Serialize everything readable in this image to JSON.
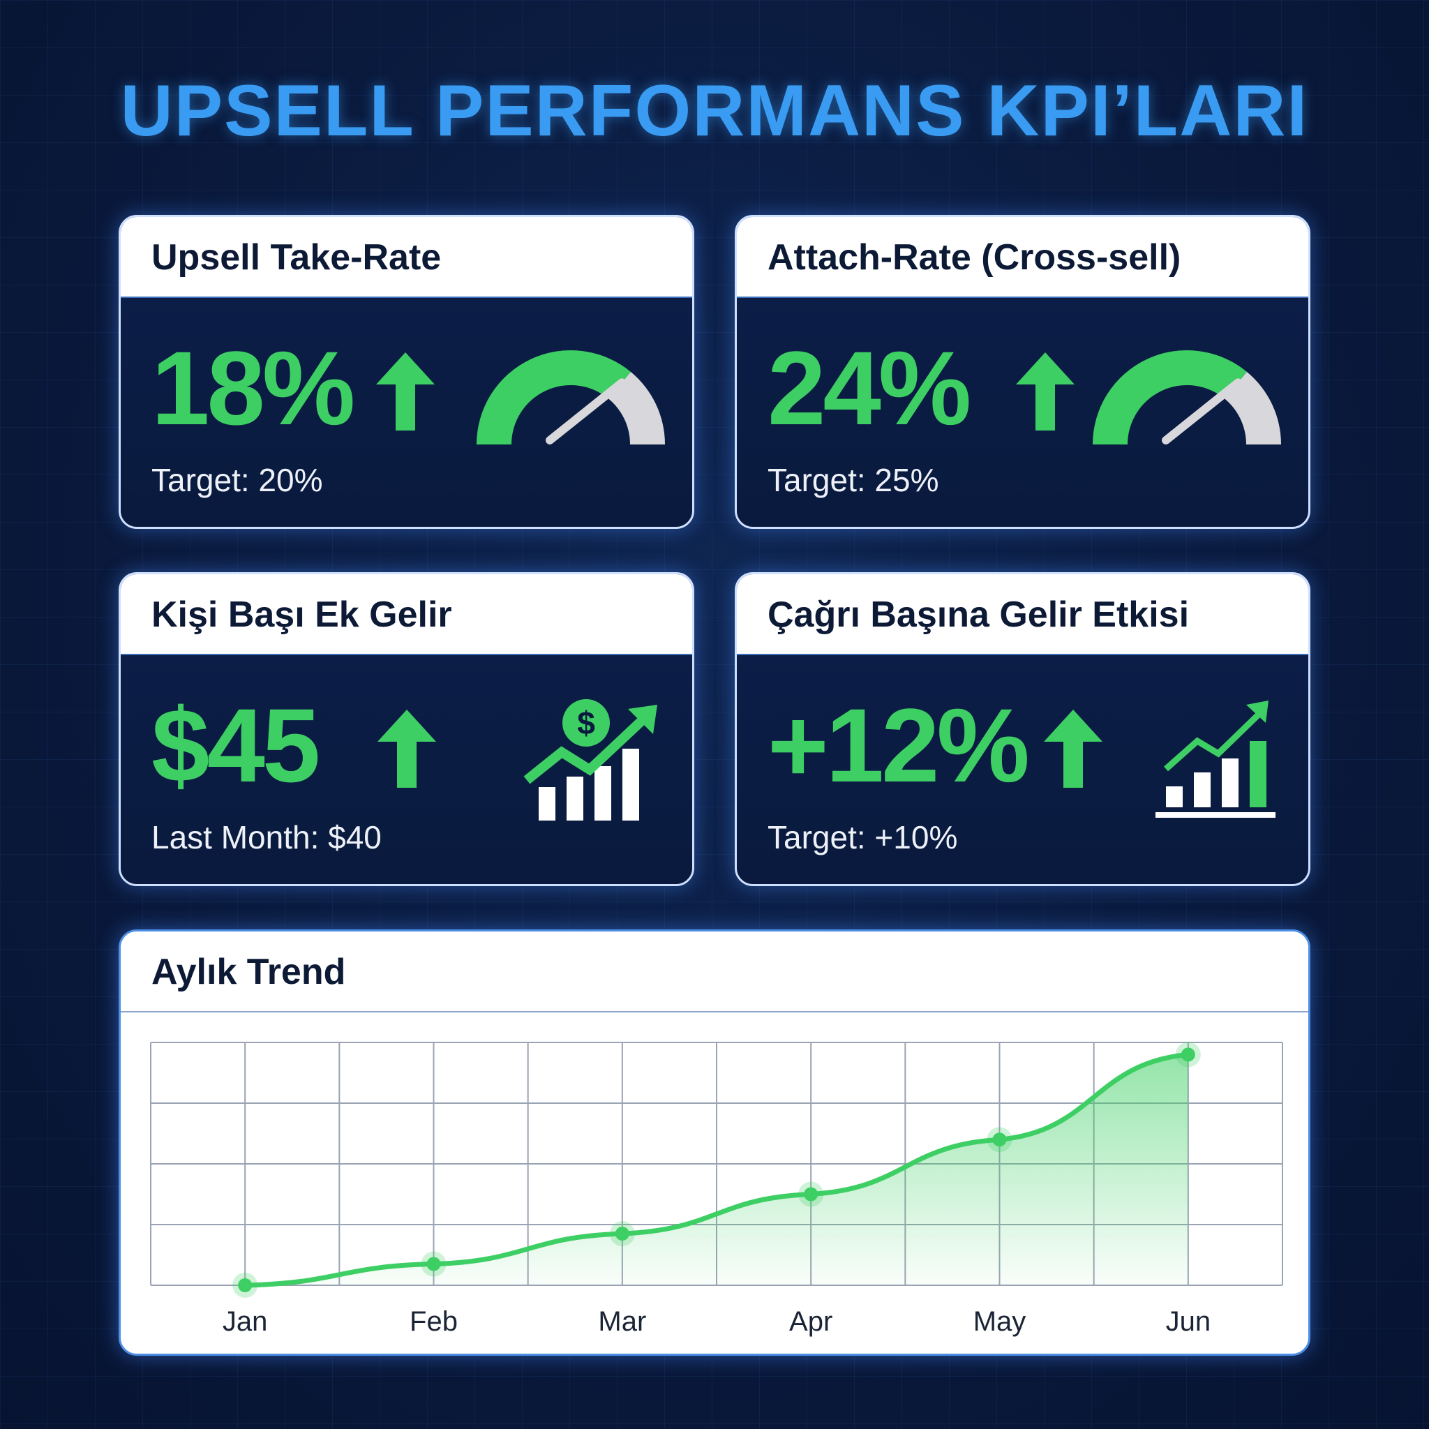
{
  "title": "UPSELL PERFORMANS KPI’LARI",
  "colors": {
    "accent_green": "#3ecf64",
    "title_blue": "#3a9bf2",
    "background": "#0a1a3d",
    "gauge_track": "#d8d8dc"
  },
  "cards": [
    {
      "title": "Upsell Take-Rate",
      "value": "18%",
      "trend": "up",
      "sub": "Target: 20%",
      "icon": "gauge-icon",
      "gauge_fill": 0.72
    },
    {
      "title": "Attach-Rate (Cross-sell)",
      "value": "24%",
      "trend": "up",
      "sub": "Target: 25%",
      "icon": "gauge-icon",
      "gauge_fill": 0.72
    },
    {
      "title": "Kişi Başı Ek Gelir",
      "value": "$45",
      "trend": "up",
      "sub": "Last Month: $40",
      "icon": "money-growth-chart-icon",
      "icon_symbol": "$"
    },
    {
      "title": "Çağrı Başına Gelir Etkisi",
      "value": "+12%",
      "trend": "up",
      "sub": "Target: +10%",
      "icon": "bar-chart-growth-icon"
    }
  ],
  "chart_data": {
    "type": "area",
    "title": "Aylık Trend",
    "categories": [
      "Jan",
      "Feb",
      "Mar",
      "Apr",
      "May",
      "Jun"
    ],
    "values": [
      0,
      0.35,
      0.85,
      1.5,
      2.4,
      3.8
    ],
    "ylim": [
      0,
      4
    ],
    "grid": true,
    "grid_columns": 12,
    "grid_rows": 4,
    "legend": "none",
    "color": "#3ecf64"
  }
}
